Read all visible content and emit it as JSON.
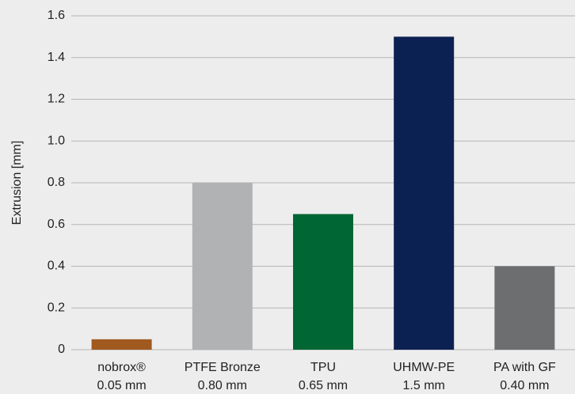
{
  "chart_data": {
    "type": "bar",
    "y_label": "Extrusion [mm]",
    "categories": [
      "nobrox®",
      "PTFE Bronze",
      "TPU",
      "UHMW-PE",
      "PA with GF"
    ],
    "values": [
      0.05,
      0.8,
      0.65,
      1.5,
      0.4
    ],
    "value_labels": [
      "0.05 mm",
      "0.80 mm",
      "0.65 mm",
      "1.5 mm",
      "0.40 mm"
    ],
    "colors": [
      "#a0591e",
      "#b1b2b4",
      "#006633",
      "#0b2152",
      "#6d6e70"
    ],
    "ylim": [
      0,
      1.6
    ],
    "yticks": [
      0,
      0.2,
      0.4,
      0.6,
      0.8,
      {
        "value": 1,
        "label": "1.0"
      },
      1.2,
      1.4,
      1.6
    ],
    "grid": true
  }
}
